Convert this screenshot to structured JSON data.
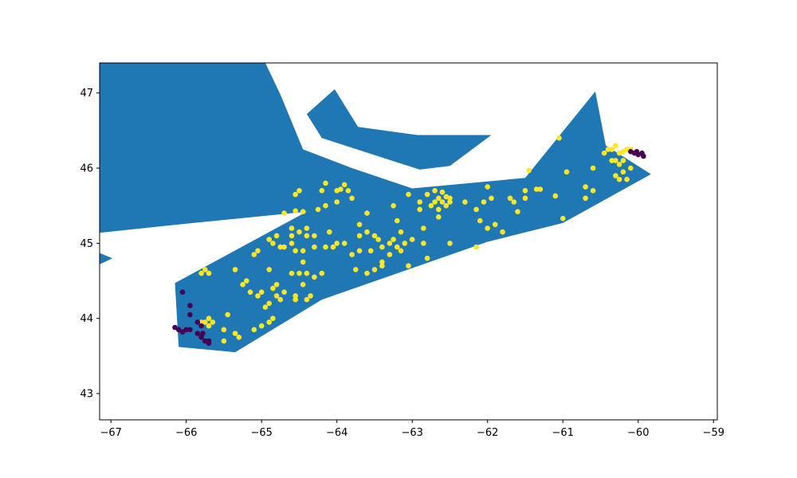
{
  "colors": {
    "land": "#1f77b4",
    "cluster_a": "#fde725",
    "cluster_b": "#440154",
    "frame": "#000000",
    "background": "#ffffff"
  },
  "chart_data": {
    "type": "scatter",
    "title": "",
    "xlabel": "",
    "ylabel": "",
    "xlim": [
      -67.15,
      -58.95
    ],
    "ylim": [
      42.65,
      47.4
    ],
    "grid": false,
    "legend": "none",
    "x_ticks": [
      {
        "value": -67,
        "label": "−67"
      },
      {
        "value": -66,
        "label": "−66"
      },
      {
        "value": -65,
        "label": "−65"
      },
      {
        "value": -64,
        "label": "−64"
      },
      {
        "value": -63,
        "label": "−63"
      },
      {
        "value": -62,
        "label": "−62"
      },
      {
        "value": -61,
        "label": "−61"
      },
      {
        "value": -60,
        "label": "−60"
      },
      {
        "value": -59,
        "label": "−59"
      }
    ],
    "y_ticks": [
      {
        "value": 43,
        "label": "43"
      },
      {
        "value": 44,
        "label": "44"
      },
      {
        "value": 45,
        "label": "45"
      },
      {
        "value": 46,
        "label": "46"
      },
      {
        "value": 47,
        "label": "47"
      }
    ],
    "polygons": [
      {
        "name": "northwest-landmass",
        "coords": [
          [
            -67.15,
            47.4
          ],
          [
            -64.95,
            47.4
          ],
          [
            -64.75,
            46.98
          ],
          [
            -64.45,
            46.25
          ],
          [
            -63.8,
            46.0
          ],
          [
            -63.0,
            45.73
          ],
          [
            -61.5,
            45.87
          ],
          [
            -60.57,
            47.02
          ],
          [
            -60.43,
            46.3
          ],
          [
            -59.83,
            45.92
          ],
          [
            -61.0,
            45.27
          ],
          [
            -62.0,
            45.02
          ],
          [
            -64.2,
            44.25
          ],
          [
            -65.35,
            43.55
          ],
          [
            -66.1,
            43.62
          ],
          [
            -66.15,
            44.47
          ],
          [
            -64.4,
            45.42
          ],
          [
            -66.0,
            45.26
          ],
          [
            -67.15,
            45.14
          ]
        ]
      },
      {
        "name": "southwest-point",
        "coords": [
          [
            -67.15,
            44.87
          ],
          [
            -66.98,
            44.8
          ],
          [
            -67.15,
            44.72
          ]
        ]
      },
      {
        "name": "island",
        "coords": [
          [
            -64.4,
            46.72
          ],
          [
            -64.03,
            47.05
          ],
          [
            -63.72,
            46.55
          ],
          [
            -62.93,
            46.44
          ],
          [
            -61.95,
            46.44
          ],
          [
            -62.5,
            46.03
          ],
          [
            -62.9,
            45.98
          ],
          [
            -64.2,
            46.4
          ]
        ]
      }
    ],
    "series": [
      {
        "color_key": "cluster_a",
        "points": [
          [
            -64.5,
            45.7
          ],
          [
            -64.55,
            45.65
          ],
          [
            -64.15,
            45.8
          ],
          [
            -64.2,
            45.7
          ],
          [
            -63.95,
            45.72
          ],
          [
            -63.9,
            45.78
          ],
          [
            -63.85,
            45.7
          ],
          [
            -64.0,
            45.55
          ],
          [
            -64.25,
            45.45
          ],
          [
            -64.45,
            45.42
          ],
          [
            -64.55,
            45.43
          ],
          [
            -64.7,
            45.4
          ],
          [
            -63.8,
            45.6
          ],
          [
            -63.6,
            45.4
          ],
          [
            -63.6,
            45.15
          ],
          [
            -63.5,
            45.1
          ],
          [
            -63.45,
            45.05
          ],
          [
            -63.7,
            45.1
          ],
          [
            -63.7,
            44.9
          ],
          [
            -63.8,
            44.85
          ],
          [
            -63.55,
            44.9
          ],
          [
            -63.4,
            44.95
          ],
          [
            -63.3,
            45.0
          ],
          [
            -63.25,
            45.05
          ],
          [
            -63.2,
            44.95
          ],
          [
            -63.15,
            44.9
          ],
          [
            -63.3,
            44.85
          ],
          [
            -63.4,
            44.75
          ],
          [
            -63.4,
            44.7
          ],
          [
            -63.5,
            44.65
          ],
          [
            -63.6,
            44.6
          ],
          [
            -63.75,
            44.65
          ],
          [
            -63.05,
            44.7
          ],
          [
            -63.15,
            45.15
          ],
          [
            -63.2,
            45.3
          ],
          [
            -63.25,
            45.5
          ],
          [
            -63.05,
            45.65
          ],
          [
            -62.9,
            45.55
          ],
          [
            -62.8,
            45.65
          ],
          [
            -62.7,
            45.7
          ],
          [
            -62.65,
            45.6
          ],
          [
            -62.6,
            45.55
          ],
          [
            -62.55,
            45.62
          ],
          [
            -62.6,
            45.68
          ],
          [
            -62.55,
            45.5
          ],
          [
            -62.65,
            45.45
          ],
          [
            -62.65,
            45.35
          ],
          [
            -62.75,
            45.5
          ],
          [
            -62.85,
            45.2
          ],
          [
            -62.85,
            45.0
          ],
          [
            -63.0,
            45.05
          ],
          [
            -62.8,
            44.8
          ],
          [
            -62.5,
            45.0
          ],
          [
            -62.5,
            45.6
          ],
          [
            -62.3,
            45.55
          ],
          [
            -62.15,
            45.45
          ],
          [
            -62.05,
            45.55
          ],
          [
            -62.0,
            45.75
          ],
          [
            -62.1,
            45.3
          ],
          [
            -62.0,
            45.2
          ],
          [
            -61.9,
            45.25
          ],
          [
            -61.8,
            45.15
          ],
          [
            -61.7,
            45.6
          ],
          [
            -61.6,
            45.42
          ],
          [
            -61.5,
            45.6
          ],
          [
            -61.5,
            45.7
          ],
          [
            -61.45,
            45.97
          ],
          [
            -61.3,
            45.72
          ],
          [
            -61.1,
            45.63
          ],
          [
            -61.05,
            46.4
          ],
          [
            -61.0,
            45.33
          ],
          [
            -60.95,
            45.95
          ],
          [
            -60.7,
            45.6
          ],
          [
            -60.7,
            45.75
          ],
          [
            -60.6,
            45.7
          ],
          [
            -60.6,
            46.0
          ],
          [
            -60.4,
            46.25
          ],
          [
            -60.45,
            46.2
          ],
          [
            -60.35,
            46.25
          ],
          [
            -60.3,
            46.3
          ],
          [
            -60.25,
            46.2
          ],
          [
            -60.2,
            46.22
          ],
          [
            -60.3,
            46.1
          ],
          [
            -60.2,
            46.1
          ],
          [
            -60.25,
            46.05
          ],
          [
            -60.35,
            46.1
          ],
          [
            -60.2,
            45.95
          ],
          [
            -60.1,
            46.0
          ],
          [
            -60.3,
            45.9
          ],
          [
            -60.25,
            45.85
          ],
          [
            -60.15,
            45.85
          ],
          [
            -60.1,
            46.25
          ],
          [
            -60.15,
            46.25
          ],
          [
            -62.15,
            44.95
          ],
          [
            -64.45,
            44.9
          ],
          [
            -64.45,
            44.75
          ],
          [
            -64.6,
            45.0
          ],
          [
            -64.6,
            45.1
          ],
          [
            -64.6,
            45.2
          ],
          [
            -64.5,
            45.15
          ],
          [
            -64.4,
            45.2
          ],
          [
            -64.3,
            45.1
          ],
          [
            -64.3,
            44.95
          ],
          [
            -64.15,
            44.95
          ],
          [
            -64.1,
            45.15
          ],
          [
            -64.05,
            44.95
          ],
          [
            -64.0,
            45.0
          ],
          [
            -63.9,
            45.0
          ],
          [
            -64.15,
            45.5
          ],
          [
            -64.4,
            45.1
          ],
          [
            -64.55,
            44.9
          ],
          [
            -64.75,
            44.95
          ],
          [
            -64.85,
            45.0
          ],
          [
            -64.9,
            45.05
          ],
          [
            -64.8,
            45.1
          ],
          [
            -64.7,
            44.95
          ],
          [
            -65.1,
            44.85
          ],
          [
            -65.05,
            44.9
          ],
          [
            -64.9,
            44.65
          ],
          [
            -64.6,
            44.6
          ],
          [
            -64.5,
            44.6
          ],
          [
            -64.4,
            44.6
          ],
          [
            -64.2,
            44.6
          ],
          [
            -64.3,
            44.55
          ],
          [
            -64.45,
            44.45
          ],
          [
            -64.55,
            44.3
          ],
          [
            -64.55,
            44.25
          ],
          [
            -64.35,
            44.3
          ],
          [
            -64.4,
            44.25
          ],
          [
            -64.7,
            44.35
          ],
          [
            -64.75,
            44.25
          ],
          [
            -64.8,
            44.3
          ],
          [
            -64.85,
            44.4
          ],
          [
            -64.8,
            44.45
          ],
          [
            -64.9,
            44.2
          ],
          [
            -65.0,
            44.35
          ],
          [
            -65.05,
            44.3
          ],
          [
            -65.15,
            44.35
          ],
          [
            -65.2,
            44.5
          ],
          [
            -65.35,
            44.65
          ],
          [
            -65.25,
            44.45
          ],
          [
            -64.9,
            43.95
          ],
          [
            -64.85,
            44.0
          ],
          [
            -64.95,
            44.15
          ],
          [
            -65.0,
            43.9
          ],
          [
            -65.1,
            43.85
          ],
          [
            -65.3,
            43.75
          ],
          [
            -65.35,
            43.8
          ],
          [
            -65.5,
            43.7
          ],
          [
            -65.5,
            43.85
          ],
          [
            -65.45,
            44.05
          ],
          [
            -65.7,
            44.0
          ],
          [
            -65.65,
            43.95
          ],
          [
            -65.7,
            43.9
          ],
          [
            -65.75,
            43.95
          ],
          [
            -65.8,
            43.95
          ],
          [
            -65.8,
            44.6
          ],
          [
            -65.75,
            44.65
          ],
          [
            -65.7,
            44.6
          ],
          [
            -64.0,
            45.7
          ],
          [
            -63.7,
            45.25
          ],
          [
            -63.1,
            45.0
          ],
          [
            -62.9,
            45.45
          ],
          [
            -62.7,
            45.55
          ],
          [
            -62.5,
            45.55
          ],
          [
            -61.95,
            45.6
          ],
          [
            -61.65,
            45.55
          ],
          [
            -61.35,
            45.72
          ]
        ]
      },
      {
        "color_key": "cluster_b",
        "points": [
          [
            -66.15,
            43.88
          ],
          [
            -66.1,
            43.85
          ],
          [
            -66.05,
            43.82
          ],
          [
            -66.0,
            43.85
          ],
          [
            -65.95,
            43.85
          ],
          [
            -66.05,
            44.35
          ],
          [
            -65.95,
            44.17
          ],
          [
            -65.95,
            44.05
          ],
          [
            -65.85,
            43.95
          ],
          [
            -65.8,
            43.9
          ],
          [
            -65.85,
            43.8
          ],
          [
            -65.8,
            43.75
          ],
          [
            -65.75,
            43.7
          ],
          [
            -65.7,
            43.67
          ],
          [
            -65.78,
            43.8
          ],
          [
            -65.7,
            43.7
          ],
          [
            -60.1,
            46.22
          ],
          [
            -60.05,
            46.2
          ],
          [
            -60.0,
            46.18
          ],
          [
            -59.95,
            46.2
          ],
          [
            -59.93,
            46.16
          ],
          [
            -60.02,
            46.22
          ]
        ]
      }
    ]
  }
}
